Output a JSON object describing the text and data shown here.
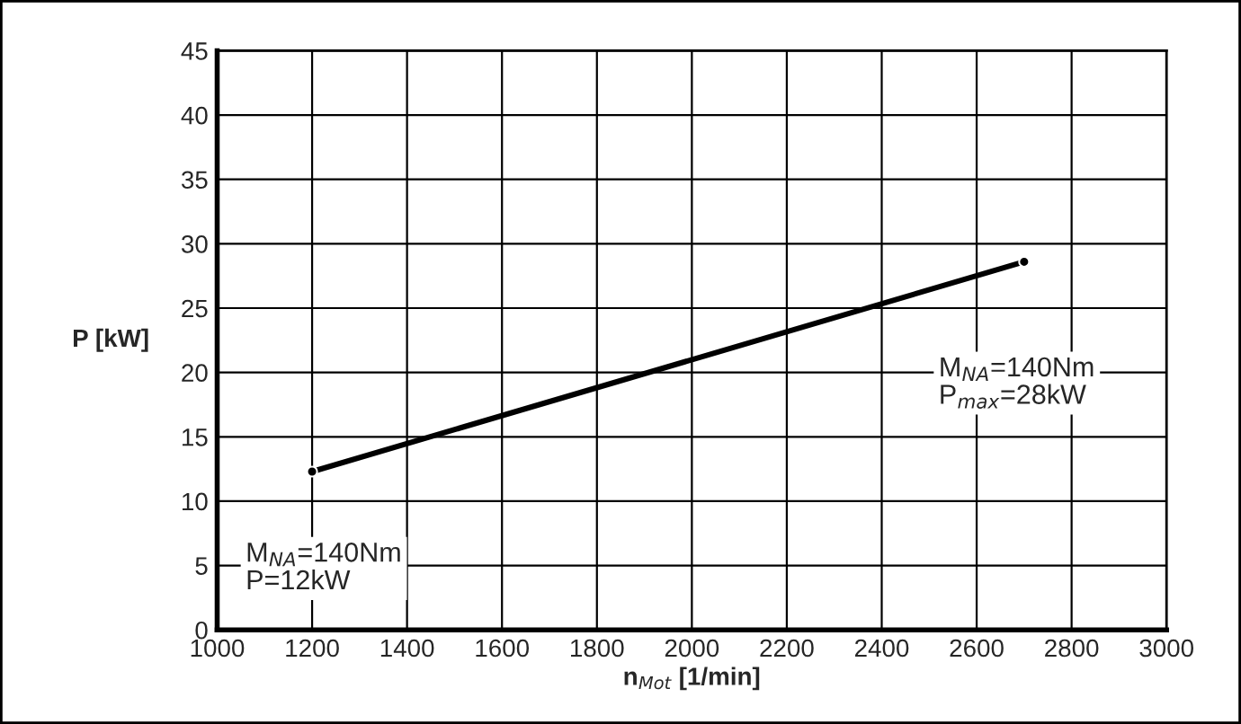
{
  "chart_data": {
    "type": "line",
    "xlabel": "n$_{Mot}$ [1/min]",
    "ylabel": "P [kW]",
    "x": [
      1200,
      2700
    ],
    "series": [
      {
        "color": "#000000",
        "values": [
          12.3,
          28.6
        ]
      }
    ],
    "xlim": [
      1000,
      3000
    ],
    "xticks": [
      1000,
      1200,
      1400,
      1600,
      1800,
      2000,
      2200,
      2400,
      2600,
      2800,
      3000
    ],
    "ylim": [
      0,
      45
    ],
    "yticks": [
      0,
      5,
      10,
      15,
      20,
      25,
      30,
      35,
      40,
      45
    ],
    "grid": true,
    "marker": "circle",
    "line_style": "solid",
    "annotations": [
      "M$_{NA}$=140Nm\nP=12kW",
      "M$_{NA}$=140Nm\nP$_{max}$=28kW"
    ]
  }
}
